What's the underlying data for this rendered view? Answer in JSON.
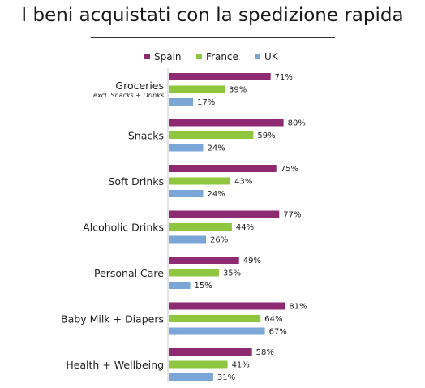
{
  "chart_data": {
    "type": "bar",
    "orientation": "horizontal",
    "title": "I beni acquistati con la spedizione rapida",
    "categories": [
      "Groceries",
      "Snacks",
      "Soft Drinks",
      "Alcoholic Drinks",
      "Personal Care",
      "Baby Milk + Diapers",
      "Health + Wellbeing"
    ],
    "category_sublabels": [
      "excl. Snacks + Drinks",
      "",
      "",
      "",
      "",
      "",
      ""
    ],
    "series": [
      {
        "name": "Spain",
        "color": "#8e2a72",
        "values": [
          71,
          80,
          75,
          77,
          49,
          81,
          58
        ]
      },
      {
        "name": "France",
        "color": "#8ec63f",
        "values": [
          39,
          59,
          43,
          44,
          35,
          64,
          41
        ]
      },
      {
        "name": "UK",
        "color": "#7aa6d8",
        "values": [
          17,
          24,
          24,
          26,
          15,
          67,
          31
        ]
      }
    ],
    "value_suffix": "%",
    "legend_position": "top",
    "xlim": [
      0,
      100
    ],
    "grid": false
  }
}
